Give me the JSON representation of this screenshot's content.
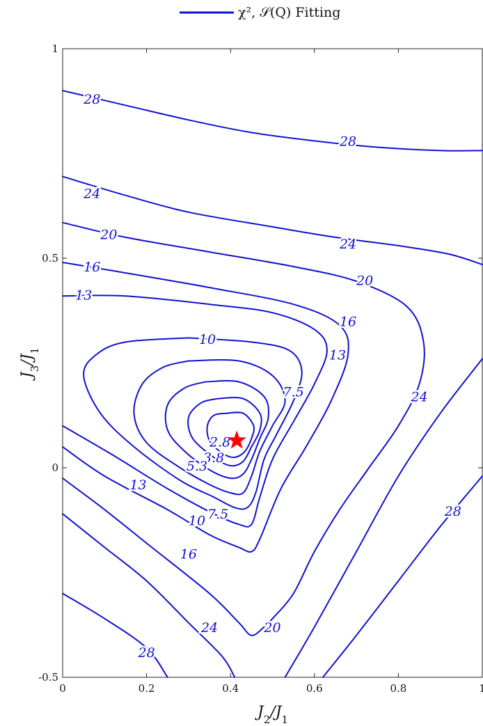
{
  "chart_data": {
    "type": "contour",
    "title": "",
    "legend": {
      "label": "χ², 𝒮(Q) Fitting",
      "placement": "top-center",
      "color": "#1010d0"
    },
    "xlabel": "J2/J1",
    "ylabel": "J3/J1",
    "xlim": [
      0,
      1
    ],
    "ylim": [
      -0.5,
      1
    ],
    "x_ticks": [
      0,
      0.2,
      0.4,
      0.6,
      0.8,
      1
    ],
    "x_tick_labels": [
      "0",
      "0.2",
      "0.4",
      "0.6",
      "0.8",
      "1"
    ],
    "y_ticks": [
      -0.5,
      0,
      0.5,
      1
    ],
    "y_tick_labels": [
      "-0.5",
      "0",
      "0.5",
      "1"
    ],
    "grid": false,
    "minimum": {
      "x": 0.415,
      "y": 0.065,
      "marker": "star",
      "color": "#ff0000"
    },
    "levels": [
      2.8,
      3.8,
      5.3,
      7.5,
      10,
      13,
      16,
      20,
      24,
      28
    ],
    "contour_labels": [
      {
        "text": "28",
        "x": 0.07,
        "y": 0.88
      },
      {
        "text": "28",
        "x": 0.68,
        "y": 0.78
      },
      {
        "text": "24",
        "x": 0.07,
        "y": 0.655
      },
      {
        "text": "24",
        "x": 0.68,
        "y": 0.535
      },
      {
        "text": "20",
        "x": 0.11,
        "y": 0.557
      },
      {
        "text": "20",
        "x": 0.72,
        "y": 0.448
      },
      {
        "text": "16",
        "x": 0.07,
        "y": 0.48
      },
      {
        "text": "16",
        "x": 0.68,
        "y": 0.35
      },
      {
        "text": "13",
        "x": 0.05,
        "y": 0.413
      },
      {
        "text": "13",
        "x": 0.655,
        "y": 0.27
      },
      {
        "text": "10",
        "x": 0.345,
        "y": 0.307
      },
      {
        "text": "7.5",
        "x": 0.55,
        "y": 0.182
      },
      {
        "text": "2.8",
        "x": 0.375,
        "y": 0.062
      },
      {
        "text": "3.8",
        "x": 0.36,
        "y": 0.025
      },
      {
        "text": "5.3",
        "x": 0.32,
        "y": 0.005
      },
      {
        "text": "13",
        "x": 0.18,
        "y": -0.04
      },
      {
        "text": "7.5",
        "x": 0.37,
        "y": -0.11
      },
      {
        "text": "10",
        "x": 0.32,
        "y": -0.125
      },
      {
        "text": "16",
        "x": 0.3,
        "y": -0.205
      },
      {
        "text": "24",
        "x": 0.85,
        "y": 0.17
      },
      {
        "text": "28",
        "x": 0.93,
        "y": -0.103
      },
      {
        "text": "20",
        "x": 0.5,
        "y": -0.38
      },
      {
        "text": "24",
        "x": 0.35,
        "y": -0.38
      },
      {
        "text": "28",
        "x": 0.2,
        "y": -0.44
      }
    ],
    "contours": [
      {
        "level": 28,
        "points": [
          [
            0,
            0.9
          ],
          [
            0.15,
            0.865
          ],
          [
            0.3,
            0.83
          ],
          [
            0.45,
            0.8
          ],
          [
            0.6,
            0.78
          ],
          [
            0.75,
            0.765
          ],
          [
            0.9,
            0.757
          ],
          [
            1,
            0.757
          ]
        ]
      },
      {
        "level": 24,
        "points": [
          [
            0,
            0.695
          ],
          [
            0.15,
            0.65
          ],
          [
            0.3,
            0.61
          ],
          [
            0.5,
            0.575
          ],
          [
            0.65,
            0.55
          ],
          [
            0.8,
            0.53
          ],
          [
            0.92,
            0.51
          ],
          [
            1,
            0.485
          ]
        ]
      },
      {
        "level": 20,
        "points": [
          [
            0,
            0.585
          ],
          [
            0.15,
            0.55
          ],
          [
            0.35,
            0.515
          ],
          [
            0.55,
            0.48
          ],
          [
            0.7,
            0.445
          ],
          [
            0.82,
            0.385
          ],
          [
            0.86,
            0.3
          ],
          [
            0.85,
            0.2
          ],
          [
            0.8,
            0.1
          ],
          [
            0.73,
            0
          ],
          [
            0.66,
            -0.1
          ],
          [
            0.6,
            -0.2
          ],
          [
            0.55,
            -0.3
          ],
          [
            0.5,
            -0.36
          ],
          [
            0.48,
            -0.38
          ],
          [
            0.45,
            -0.4
          ],
          [
            0.42,
            -0.37
          ],
          [
            0.35,
            -0.3
          ],
          [
            0.2,
            -0.18
          ],
          [
            0.1,
            -0.1
          ],
          [
            0,
            -0.025
          ]
        ]
      },
      {
        "level": 16,
        "points": [
          [
            0,
            0.49
          ],
          [
            0.15,
            0.465
          ],
          [
            0.35,
            0.43
          ],
          [
            0.55,
            0.39
          ],
          [
            0.66,
            0.34
          ],
          [
            0.68,
            0.27
          ],
          [
            0.64,
            0.16
          ],
          [
            0.58,
            0.05
          ],
          [
            0.52,
            -0.05
          ],
          [
            0.47,
            -0.17
          ],
          [
            0.45,
            -0.2
          ],
          [
            0.42,
            -0.19
          ],
          [
            0.35,
            -0.16
          ],
          [
            0.25,
            -0.1
          ],
          [
            0.1,
            -0.02
          ],
          [
            0,
            0.05
          ]
        ]
      },
      {
        "level": 13,
        "points": [
          [
            0,
            0.41
          ],
          [
            0.15,
            0.41
          ],
          [
            0.35,
            0.39
          ],
          [
            0.5,
            0.37
          ],
          [
            0.6,
            0.33
          ],
          [
            0.63,
            0.28
          ],
          [
            0.6,
            0.2
          ],
          [
            0.55,
            0.11
          ],
          [
            0.5,
            0.02
          ],
          [
            0.47,
            -0.07
          ],
          [
            0.45,
            -0.135
          ],
          [
            0.42,
            -0.135
          ],
          [
            0.36,
            -0.11
          ],
          [
            0.25,
            -0.05
          ],
          [
            0.12,
            0.03
          ],
          [
            0,
            0.1
          ]
        ]
      },
      {
        "level": 10,
        "points": [
          [
            0.3,
            0.31
          ],
          [
            0.45,
            0.3
          ],
          [
            0.54,
            0.28
          ],
          [
            0.57,
            0.23
          ],
          [
            0.55,
            0.16
          ],
          [
            0.51,
            0.08
          ],
          [
            0.48,
            0.02
          ],
          [
            0.46,
            -0.06
          ],
          [
            0.44,
            -0.095
          ],
          [
            0.41,
            -0.095
          ],
          [
            0.36,
            -0.07
          ],
          [
            0.28,
            -0.03
          ],
          [
            0.17,
            0.05
          ],
          [
            0.09,
            0.13
          ],
          [
            0.05,
            0.22
          ],
          [
            0.08,
            0.27
          ],
          [
            0.15,
            0.3
          ],
          [
            0.3,
            0.31
          ]
        ]
      },
      {
        "level": 7.5,
        "points": [
          [
            0.3,
            0.255
          ],
          [
            0.42,
            0.255
          ],
          [
            0.5,
            0.22
          ],
          [
            0.53,
            0.16
          ],
          [
            0.5,
            0.1
          ],
          [
            0.47,
            0.04
          ],
          [
            0.45,
            -0.02
          ],
          [
            0.43,
            -0.06
          ],
          [
            0.4,
            -0.06
          ],
          [
            0.35,
            -0.04
          ],
          [
            0.28,
            0
          ],
          [
            0.2,
            0.06
          ],
          [
            0.17,
            0.13
          ],
          [
            0.19,
            0.2
          ],
          [
            0.24,
            0.24
          ],
          [
            0.3,
            0.255
          ]
        ]
      },
      {
        "level": 5.3,
        "points": [
          [
            0.34,
            0.205
          ],
          [
            0.42,
            0.205
          ],
          [
            0.48,
            0.17
          ],
          [
            0.49,
            0.12
          ],
          [
            0.47,
            0.07
          ],
          [
            0.45,
            0.02
          ],
          [
            0.43,
            -0.015
          ],
          [
            0.4,
            -0.025
          ],
          [
            0.35,
            -0.005
          ],
          [
            0.29,
            0.04
          ],
          [
            0.25,
            0.09
          ],
          [
            0.25,
            0.15
          ],
          [
            0.29,
            0.19
          ],
          [
            0.34,
            0.205
          ]
        ]
      },
      {
        "level": 3.8,
        "points": [
          [
            0.37,
            0.165
          ],
          [
            0.43,
            0.165
          ],
          [
            0.47,
            0.13
          ],
          [
            0.47,
            0.09
          ],
          [
            0.45,
            0.05
          ],
          [
            0.43,
            0.015
          ],
          [
            0.4,
            0.005
          ],
          [
            0.36,
            0.025
          ],
          [
            0.31,
            0.07
          ],
          [
            0.3,
            0.12
          ],
          [
            0.33,
            0.155
          ],
          [
            0.37,
            0.165
          ]
        ]
      },
      {
        "level": 2.8,
        "points": [
          [
            0.39,
            0.13
          ],
          [
            0.43,
            0.13
          ],
          [
            0.455,
            0.1
          ],
          [
            0.45,
            0.07
          ],
          [
            0.435,
            0.04
          ],
          [
            0.41,
            0.025
          ],
          [
            0.38,
            0.035
          ],
          [
            0.35,
            0.065
          ],
          [
            0.345,
            0.1
          ],
          [
            0.36,
            0.125
          ],
          [
            0.39,
            0.13
          ]
        ]
      },
      {
        "level": 24,
        "points": [
          [
            0.53,
            -0.5
          ],
          [
            0.6,
            -0.38
          ],
          [
            0.7,
            -0.2
          ],
          [
            0.8,
            -0.02
          ],
          [
            0.9,
            0.13
          ],
          [
            1,
            0.26
          ]
        ]
      },
      {
        "level": 28,
        "points": [
          [
            0.62,
            -0.5
          ],
          [
            0.7,
            -0.4
          ],
          [
            0.8,
            -0.27
          ],
          [
            0.9,
            -0.14
          ],
          [
            1,
            -0.02
          ]
        ]
      },
      {
        "level": 24,
        "points": [
          [
            0,
            -0.11
          ],
          [
            0.1,
            -0.19
          ],
          [
            0.2,
            -0.27
          ],
          [
            0.3,
            -0.37
          ],
          [
            0.38,
            -0.45
          ],
          [
            0.41,
            -0.5
          ]
        ]
      },
      {
        "level": 28,
        "points": [
          [
            0,
            -0.3
          ],
          [
            0.1,
            -0.36
          ],
          [
            0.2,
            -0.43
          ],
          [
            0.25,
            -0.5
          ]
        ]
      }
    ]
  }
}
